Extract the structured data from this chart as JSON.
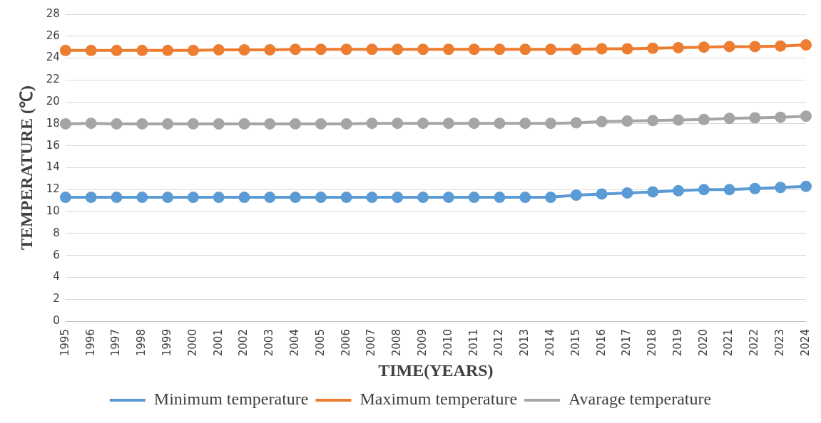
{
  "chart_data": {
    "type": "line",
    "xlabel": "TIME(YEARS)",
    "ylabel": "TEMPERATURE (℃)",
    "categories": [
      "1995",
      "1996",
      "1997",
      "1998",
      "1999",
      "2000",
      "2001",
      "2002",
      "2003",
      "2004",
      "2005",
      "2006",
      "2007",
      "2008",
      "2009",
      "2010",
      "2011",
      "2012",
      "2013",
      "2014",
      "2015",
      "2016",
      "2017",
      "2018",
      "2019",
      "2020",
      "2021",
      "2022",
      "2023",
      "2024"
    ],
    "series": [
      {
        "name": "Minimum temperature",
        "color": "#5b9bd5",
        "values": [
          11.3,
          11.3,
          11.3,
          11.3,
          11.3,
          11.3,
          11.3,
          11.3,
          11.3,
          11.3,
          11.3,
          11.3,
          11.3,
          11.3,
          11.3,
          11.3,
          11.3,
          11.3,
          11.3,
          11.3,
          11.5,
          11.6,
          11.7,
          11.8,
          11.9,
          12.0,
          12.0,
          12.1,
          12.2,
          12.3
        ]
      },
      {
        "name": "Maximum temperature",
        "color": "#ed7d31",
        "values": [
          24.7,
          24.7,
          24.7,
          24.7,
          24.7,
          24.7,
          24.75,
          24.75,
          24.75,
          24.8,
          24.8,
          24.8,
          24.8,
          24.8,
          24.8,
          24.8,
          24.8,
          24.8,
          24.8,
          24.8,
          24.8,
          24.85,
          24.85,
          24.9,
          24.95,
          25.0,
          25.05,
          25.05,
          25.1,
          25.2
        ]
      },
      {
        "name": "Avarage temperature",
        "color": "#a5a5a5",
        "values": [
          18.0,
          18.05,
          18.0,
          18.0,
          18.0,
          18.0,
          18.0,
          18.0,
          18.0,
          18.0,
          18.0,
          18.0,
          18.05,
          18.05,
          18.05,
          18.05,
          18.05,
          18.05,
          18.05,
          18.05,
          18.1,
          18.2,
          18.25,
          18.3,
          18.35,
          18.4,
          18.5,
          18.55,
          18.6,
          18.7
        ]
      }
    ],
    "ylim": [
      0,
      28
    ],
    "yticks": [
      0,
      2,
      4,
      6,
      8,
      10,
      12,
      14,
      16,
      18,
      20,
      22,
      24,
      26,
      28
    ],
    "grid": "y",
    "legend": "bottom",
    "marker": "circle",
    "line_style": "solid"
  }
}
